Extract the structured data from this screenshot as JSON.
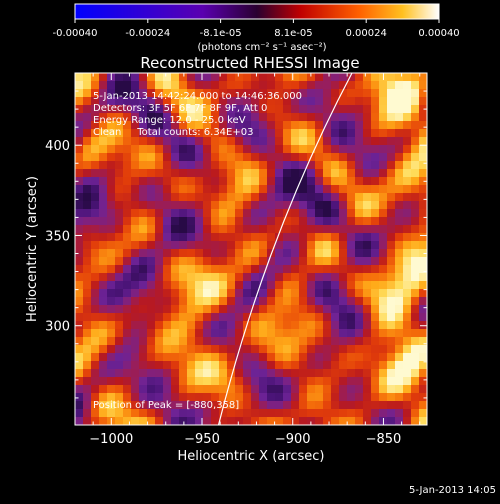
{
  "colorbar": {
    "tick_labels": [
      "-0.00040",
      "-0.00024",
      "-8.1e-05",
      "8.1e-05",
      "0.00024",
      "0.00040"
    ],
    "units_label": "(photons cm⁻² s⁻¹ asec⁻²)",
    "range": [
      -0.0004,
      0.0004
    ]
  },
  "chart_data": {
    "type": "heatmap",
    "title": "Reconstructed RHESSI Image",
    "xlabel": "Heliocentric X (arcsec)",
    "ylabel": "Heliocentric Y (arcsec)",
    "xlim": [
      -1020,
      -826
    ],
    "ylim": [
      245,
      440
    ],
    "x_ticks": [
      -1000,
      -950,
      -900,
      -850
    ],
    "y_ticks": [
      300,
      350,
      400
    ],
    "x_tick_labels": [
      "−1000",
      "−950",
      "−900",
      "−850"
    ],
    "y_tick_labels": [
      "300",
      "350",
      "400"
    ],
    "limb_label": "solar limb",
    "peak_position": [
      -880,
      358
    ],
    "info_lines": [
      "5-Jan-2013 14:42:24.000 to 14:46:36.000",
      "Detectors: 3F 5F 6F 7F 8F 9F, Att 0",
      "Energy Range: 12.0 - 25.0 keV",
      "Clean     Total counts: 6.34E+03"
    ],
    "peak_label": "Position of Peak = [-880,358]",
    "grid": false
  },
  "footer": {
    "timestamp": "5-Jan-2013 14:05"
  }
}
